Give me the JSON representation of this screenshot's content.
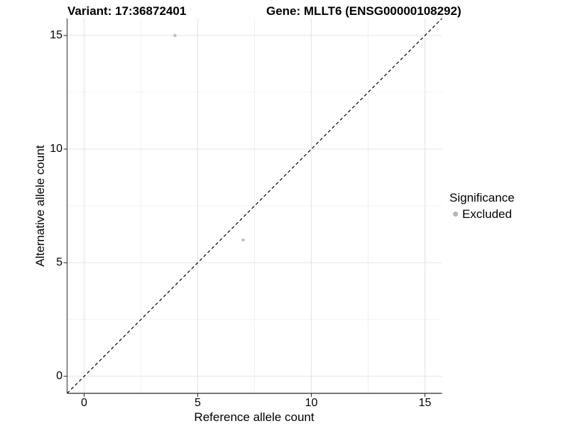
{
  "titles": {
    "left": "Variant: 17:36872401",
    "right": "Gene: MLLT6 (ENSG00000108292)"
  },
  "chart_data": {
    "type": "scatter",
    "title_left": "Variant: 17:36872401",
    "title_right": "Gene: MLLT6 (ENSG00000108292)",
    "xlabel": "Reference allele count",
    "ylabel": "Alternative allele count",
    "xlim": [
      -0.75,
      15.75
    ],
    "ylim": [
      -0.75,
      15.75
    ],
    "x_ticks": [
      0,
      5,
      10,
      15
    ],
    "y_ticks": [
      0,
      5,
      10,
      15
    ],
    "x_minor_ticks": [
      2.5,
      7.5,
      12.5
    ],
    "y_minor_ticks": [
      2.5,
      7.5,
      12.5
    ],
    "grid": true,
    "identity_line": {
      "style": "dashed",
      "x1": -0.75,
      "y1": -0.75,
      "x2": 15.75,
      "y2": 15.75,
      "color": "#000000"
    },
    "series": [
      {
        "name": "Excluded",
        "color": "#c0c0c0",
        "point_radius": 2.3,
        "points": [
          {
            "x": 4,
            "y": 15
          },
          {
            "x": 7,
            "y": 6
          }
        ]
      }
    ],
    "legend": {
      "title": "Significance",
      "position": "right",
      "entries": [
        {
          "label": "Excluded",
          "color": "#b4b4b4"
        }
      ]
    },
    "colors": {
      "major_grid": "#e4e4e4",
      "minor_grid": "#f1f1f1",
      "axis_line": "#4a4a4a",
      "tick_mark": "#333333"
    }
  }
}
